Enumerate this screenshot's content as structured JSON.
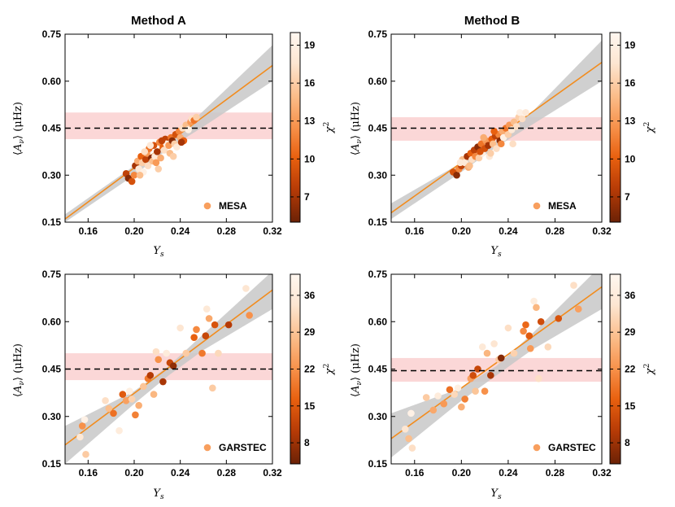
{
  "figure": {
    "colors": {
      "fit_line": "#f28c1e",
      "conf_band": "#c8c8c8",
      "target_band": "#f9c9c9",
      "dashed": "#000000",
      "colormap": [
        "#6b2206",
        "#b53a06",
        "#e8600f",
        "#f7914a",
        "#fbbe8c",
        "#fde6d2",
        "#fff7f0"
      ]
    }
  },
  "chart_data": [
    {
      "type": "scatter",
      "title": "Method A",
      "xlabel": "Y_s",
      "ylabel": "⟨A_ν⟩ (μHz)",
      "xlim": [
        0.14,
        0.32
      ],
      "ylim": [
        0.15,
        0.75
      ],
      "xticks": [
        "0.16",
        "0.20",
        "0.24",
        "0.28",
        "0.32"
      ],
      "yticks": [
        "0.15",
        "0.30",
        "0.45",
        "0.60",
        "0.75"
      ],
      "legend": "MESA",
      "legend_position": "lower-right",
      "colorbar": {
        "label": "χ2",
        "range": [
          5,
          20
        ],
        "ticks": [
          "7",
          "10",
          "13",
          "16",
          "19"
        ]
      },
      "hline": 0.45,
      "target_band": [
        0.415,
        0.5
      ],
      "fit": {
        "x": [
          0.14,
          0.32
        ],
        "y": [
          0.16,
          0.65
        ]
      },
      "conf_band": {
        "x": [
          0.14,
          0.2,
          0.23,
          0.26,
          0.32
        ],
        "lo": [
          0.15,
          0.3,
          0.385,
          0.455,
          0.6
        ],
        "hi": [
          0.175,
          0.33,
          0.405,
          0.505,
          0.715
        ]
      },
      "points": [
        [
          0.193,
          0.305,
          8
        ],
        [
          0.195,
          0.29,
          6
        ],
        [
          0.198,
          0.28,
          9
        ],
        [
          0.2,
          0.3,
          12
        ],
        [
          0.201,
          0.33,
          7
        ],
        [
          0.203,
          0.345,
          14
        ],
        [
          0.204,
          0.32,
          18
        ],
        [
          0.206,
          0.36,
          10
        ],
        [
          0.207,
          0.34,
          16
        ],
        [
          0.208,
          0.31,
          19
        ],
        [
          0.21,
          0.35,
          8
        ],
        [
          0.211,
          0.37,
          13
        ],
        [
          0.212,
          0.33,
          17
        ],
        [
          0.213,
          0.385,
          11
        ],
        [
          0.215,
          0.355,
          6
        ],
        [
          0.216,
          0.345,
          15
        ],
        [
          0.217,
          0.395,
          9
        ],
        [
          0.218,
          0.36,
          18
        ],
        [
          0.22,
          0.375,
          7
        ],
        [
          0.221,
          0.32,
          16
        ],
        [
          0.222,
          0.405,
          12
        ],
        [
          0.223,
          0.355,
          14
        ],
        [
          0.225,
          0.39,
          10
        ],
        [
          0.226,
          0.38,
          17
        ],
        [
          0.227,
          0.415,
          8
        ],
        [
          0.228,
          0.4,
          19
        ],
        [
          0.23,
          0.395,
          13
        ],
        [
          0.231,
          0.37,
          15
        ],
        [
          0.232,
          0.42,
          11
        ],
        [
          0.233,
          0.41,
          6
        ],
        [
          0.235,
          0.4,
          16
        ],
        [
          0.236,
          0.43,
          9
        ],
        [
          0.237,
          0.39,
          18
        ],
        [
          0.239,
          0.44,
          12
        ],
        [
          0.24,
          0.42,
          14
        ],
        [
          0.242,
          0.45,
          17
        ],
        [
          0.243,
          0.41,
          10
        ],
        [
          0.245,
          0.46,
          15
        ],
        [
          0.247,
          0.445,
          19
        ],
        [
          0.249,
          0.47,
          13
        ],
        [
          0.25,
          0.48,
          17
        ],
        [
          0.252,
          0.475,
          11
        ],
        [
          0.254,
          0.485,
          16
        ],
        [
          0.205,
          0.3,
          15
        ],
        [
          0.214,
          0.395,
          18
        ],
        [
          0.224,
          0.41,
          8
        ],
        [
          0.234,
          0.36,
          16
        ],
        [
          0.241,
          0.405,
          7
        ],
        [
          0.219,
          0.34,
          13
        ],
        [
          0.209,
          0.375,
          17
        ]
      ]
    },
    {
      "type": "scatter",
      "title": "Method B",
      "xlabel": "Y_s",
      "ylabel": "⟨A_ν⟩ (μHz)",
      "xlim": [
        0.14,
        0.32
      ],
      "ylim": [
        0.15,
        0.75
      ],
      "xticks": [
        "0.16",
        "0.20",
        "0.24",
        "0.28",
        "0.32"
      ],
      "yticks": [
        "0.15",
        "0.30",
        "0.45",
        "0.60",
        "0.75"
      ],
      "legend": "MESA",
      "legend_position": "lower-right",
      "colorbar": {
        "label": "χ2",
        "range": [
          5,
          20
        ],
        "ticks": [
          "7",
          "10",
          "13",
          "16",
          "19"
        ]
      },
      "hline": 0.45,
      "target_band": [
        0.41,
        0.485
      ],
      "fit": {
        "x": [
          0.14,
          0.32
        ],
        "y": [
          0.18,
          0.66
        ]
      },
      "conf_band": {
        "x": [
          0.14,
          0.2,
          0.23,
          0.26,
          0.32
        ],
        "lo": [
          0.16,
          0.31,
          0.39,
          0.46,
          0.6
        ],
        "hi": [
          0.21,
          0.34,
          0.41,
          0.5,
          0.73
        ]
      },
      "points": [
        [
          0.193,
          0.31,
          9
        ],
        [
          0.196,
          0.3,
          6
        ],
        [
          0.198,
          0.32,
          12
        ],
        [
          0.2,
          0.33,
          8
        ],
        [
          0.201,
          0.35,
          15
        ],
        [
          0.203,
          0.34,
          18
        ],
        [
          0.205,
          0.36,
          7
        ],
        [
          0.206,
          0.325,
          14
        ],
        [
          0.208,
          0.37,
          10
        ],
        [
          0.209,
          0.35,
          17
        ],
        [
          0.211,
          0.38,
          8
        ],
        [
          0.212,
          0.36,
          12
        ],
        [
          0.214,
          0.39,
          6
        ],
        [
          0.215,
          0.355,
          16
        ],
        [
          0.217,
          0.4,
          11
        ],
        [
          0.218,
          0.37,
          19
        ],
        [
          0.22,
          0.385,
          9
        ],
        [
          0.221,
          0.41,
          13
        ],
        [
          0.223,
          0.395,
          7
        ],
        [
          0.224,
          0.36,
          18
        ],
        [
          0.226,
          0.415,
          10
        ],
        [
          0.227,
          0.4,
          15
        ],
        [
          0.229,
          0.425,
          8
        ],
        [
          0.23,
          0.385,
          17
        ],
        [
          0.232,
          0.43,
          12
        ],
        [
          0.233,
          0.41,
          6
        ],
        [
          0.235,
          0.44,
          14
        ],
        [
          0.236,
          0.42,
          19
        ],
        [
          0.238,
          0.45,
          11
        ],
        [
          0.24,
          0.43,
          16
        ],
        [
          0.241,
          0.46,
          13
        ],
        [
          0.243,
          0.445,
          18
        ],
        [
          0.245,
          0.47,
          15
        ],
        [
          0.247,
          0.455,
          17
        ],
        [
          0.249,
          0.485,
          16
        ],
        [
          0.25,
          0.5,
          19
        ],
        [
          0.252,
          0.48,
          17
        ],
        [
          0.255,
          0.5,
          18
        ],
        [
          0.207,
          0.33,
          15
        ],
        [
          0.216,
          0.375,
          9
        ],
        [
          0.225,
          0.37,
          16
        ],
        [
          0.234,
          0.4,
          12
        ],
        [
          0.244,
          0.4,
          17
        ],
        [
          0.219,
          0.42,
          14
        ],
        [
          0.228,
          0.44,
          10
        ],
        [
          0.199,
          0.34,
          18
        ]
      ]
    },
    {
      "type": "scatter",
      "title": "",
      "xlabel": "Y_s",
      "ylabel": "⟨A_ν⟩ (μHz)",
      "xlim": [
        0.14,
        0.32
      ],
      "ylim": [
        0.15,
        0.75
      ],
      "xticks": [
        "0.16",
        "0.20",
        "0.24",
        "0.28",
        "0.32"
      ],
      "yticks": [
        "0.15",
        "0.30",
        "0.45",
        "0.60",
        "0.75"
      ],
      "legend": "GARSTEC",
      "legend_position": "lower-right",
      "colorbar": {
        "label": "χ2",
        "range": [
          4,
          40
        ],
        "ticks": [
          "8",
          "15",
          "22",
          "29",
          "36"
        ]
      },
      "hline": 0.45,
      "target_band": [
        0.415,
        0.5
      ],
      "fit": {
        "x": [
          0.14,
          0.32
        ],
        "y": [
          0.21,
          0.7
        ]
      },
      "conf_band": {
        "x": [
          0.14,
          0.2,
          0.23,
          0.26,
          0.32
        ],
        "lo": [
          0.15,
          0.34,
          0.43,
          0.51,
          0.64
        ],
        "hi": [
          0.27,
          0.38,
          0.46,
          0.56,
          0.76
        ]
      },
      "points": [
        [
          0.153,
          0.235,
          35
        ],
        [
          0.155,
          0.27,
          22
        ],
        [
          0.157,
          0.29,
          38
        ],
        [
          0.158,
          0.18,
          30
        ],
        [
          0.175,
          0.35,
          33
        ],
        [
          0.178,
          0.325,
          28
        ],
        [
          0.182,
          0.31,
          18
        ],
        [
          0.187,
          0.255,
          36
        ],
        [
          0.19,
          0.37,
          15
        ],
        [
          0.193,
          0.35,
          24
        ],
        [
          0.196,
          0.38,
          37
        ],
        [
          0.198,
          0.355,
          31
        ],
        [
          0.201,
          0.305,
          20
        ],
        [
          0.204,
          0.335,
          26
        ],
        [
          0.208,
          0.395,
          29
        ],
        [
          0.212,
          0.42,
          19
        ],
        [
          0.214,
          0.43,
          10
        ],
        [
          0.217,
          0.37,
          27
        ],
        [
          0.219,
          0.505,
          33
        ],
        [
          0.221,
          0.48,
          22
        ],
        [
          0.225,
          0.41,
          9
        ],
        [
          0.228,
          0.5,
          36
        ],
        [
          0.231,
          0.47,
          12
        ],
        [
          0.234,
          0.46,
          7
        ],
        [
          0.24,
          0.58,
          34
        ],
        [
          0.245,
          0.5,
          30
        ],
        [
          0.252,
          0.55,
          16
        ],
        [
          0.254,
          0.575,
          21
        ],
        [
          0.259,
          0.5,
          19
        ],
        [
          0.263,
          0.64,
          35
        ],
        [
          0.265,
          0.61,
          25
        ],
        [
          0.268,
          0.39,
          30
        ],
        [
          0.27,
          0.59,
          14
        ],
        [
          0.273,
          0.5,
          32
        ],
        [
          0.282,
          0.59,
          10
        ],
        [
          0.297,
          0.705,
          34
        ],
        [
          0.3,
          0.62,
          22
        ],
        [
          0.262,
          0.555,
          12
        ]
      ]
    },
    {
      "type": "scatter",
      "title": "",
      "xlabel": "Y_s",
      "ylabel": "⟨A_ν⟩ (μHz)",
      "xlim": [
        0.14,
        0.32
      ],
      "ylim": [
        0.15,
        0.75
      ],
      "xticks": [
        "0.16",
        "0.20",
        "0.24",
        "0.28",
        "0.32"
      ],
      "yticks": [
        "0.15",
        "0.30",
        "0.45",
        "0.60",
        "0.75"
      ],
      "legend": "GARSTEC",
      "legend_position": "lower-right",
      "colorbar": {
        "label": "χ2",
        "range": [
          4,
          40
        ],
        "ticks": [
          "8",
          "15",
          "22",
          "29",
          "36"
        ]
      },
      "hline": 0.445,
      "target_band": [
        0.41,
        0.485
      ],
      "fit": {
        "x": [
          0.14,
          0.32
        ],
        "y": [
          0.23,
          0.71
        ]
      },
      "conf_band": {
        "x": [
          0.14,
          0.2,
          0.23,
          0.26,
          0.32
        ],
        "lo": [
          0.17,
          0.35,
          0.43,
          0.51,
          0.64
        ],
        "hi": [
          0.31,
          0.39,
          0.46,
          0.56,
          0.78
        ]
      },
      "points": [
        [
          0.152,
          0.26,
          34
        ],
        [
          0.155,
          0.23,
          28
        ],
        [
          0.157,
          0.31,
          38
        ],
        [
          0.158,
          0.2,
          33
        ],
        [
          0.17,
          0.36,
          30
        ],
        [
          0.176,
          0.32,
          25
        ],
        [
          0.18,
          0.365,
          36
        ],
        [
          0.185,
          0.34,
          23
        ],
        [
          0.19,
          0.385,
          18
        ],
        [
          0.194,
          0.37,
          32
        ],
        [
          0.197,
          0.39,
          37
        ],
        [
          0.2,
          0.33,
          26
        ],
        [
          0.203,
          0.355,
          20
        ],
        [
          0.208,
          0.42,
          24
        ],
        [
          0.21,
          0.43,
          13
        ],
        [
          0.212,
          0.38,
          29
        ],
        [
          0.214,
          0.45,
          12
        ],
        [
          0.218,
          0.52,
          35
        ],
        [
          0.22,
          0.38,
          22
        ],
        [
          0.222,
          0.5,
          27
        ],
        [
          0.225,
          0.43,
          9
        ],
        [
          0.228,
          0.53,
          34
        ],
        [
          0.232,
          0.48,
          30
        ],
        [
          0.234,
          0.485,
          6
        ],
        [
          0.24,
          0.58,
          33
        ],
        [
          0.245,
          0.5,
          31
        ],
        [
          0.253,
          0.57,
          21
        ],
        [
          0.255,
          0.59,
          17
        ],
        [
          0.259,
          0.515,
          23
        ],
        [
          0.262,
          0.665,
          36
        ],
        [
          0.264,
          0.645,
          27
        ],
        [
          0.266,
          0.42,
          33
        ],
        [
          0.268,
          0.6,
          13
        ],
        [
          0.274,
          0.52,
          32
        ],
        [
          0.283,
          0.61,
          14
        ],
        [
          0.296,
          0.715,
          33
        ],
        [
          0.3,
          0.64,
          24
        ],
        [
          0.258,
          0.555,
          15
        ]
      ]
    }
  ]
}
